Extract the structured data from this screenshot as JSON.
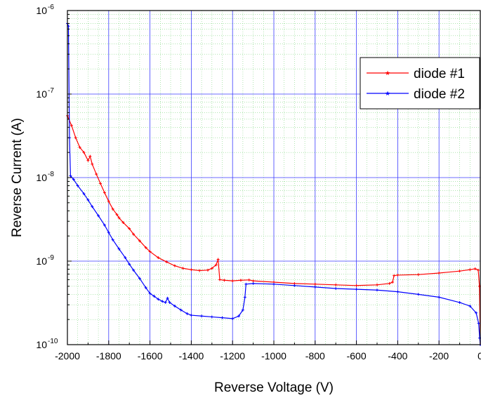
{
  "chart_data": {
    "type": "line",
    "title": "",
    "xlabel": "Reverse Voltage (V)",
    "ylabel": "Reverse Current (A)",
    "x_scale": "linear",
    "y_scale": "log",
    "xlim": [
      -2000,
      0
    ],
    "ylim": [
      1e-10,
      1e-06
    ],
    "x_ticks": [
      -2000,
      -1800,
      -1600,
      -1400,
      -1200,
      -1000,
      -800,
      -600,
      -400,
      -200,
      0
    ],
    "x_tick_labels": [
      "-2000",
      "-1800",
      "-1600",
      "-1400",
      "-1200",
      "-1000",
      "-800",
      "-600",
      "-400",
      "-200",
      "0"
    ],
    "y_ticks": [
      1e-10,
      1e-09,
      1e-08,
      1e-07,
      1e-06
    ],
    "y_tick_mantissa": [
      "10",
      "10",
      "10",
      "10",
      "10"
    ],
    "y_tick_exponents": [
      "-10",
      "-9",
      "-8",
      "-7",
      "-6"
    ],
    "grid": {
      "major": true,
      "minor": true
    },
    "legend_position": "top-right",
    "series": [
      {
        "name": "diode #1",
        "color": "#ff0000",
        "marker": "star",
        "points": [
          [
            -2000,
            5.5e-08
          ],
          [
            -1980,
            4.2e-08
          ],
          [
            -1960,
            3e-08
          ],
          [
            -1940,
            2.3e-08
          ],
          [
            -1920,
            2e-08
          ],
          [
            -1900,
            1.6e-08
          ],
          [
            -1890,
            1.8e-08
          ],
          [
            -1880,
            1.45e-08
          ],
          [
            -1860,
            1.1e-08
          ],
          [
            -1840,
            8.5e-09
          ],
          [
            -1820,
            6.6e-09
          ],
          [
            -1800,
            5.2e-09
          ],
          [
            -1780,
            4.2e-09
          ],
          [
            -1760,
            3.6e-09
          ],
          [
            -1750,
            3.3e-09
          ],
          [
            -1730,
            2.9e-09
          ],
          [
            -1700,
            2.45e-09
          ],
          [
            -1680,
            2.1e-09
          ],
          [
            -1650,
            1.75e-09
          ],
          [
            -1620,
            1.45e-09
          ],
          [
            -1600,
            1.3e-09
          ],
          [
            -1560,
            1.1e-09
          ],
          [
            -1520,
            9.8e-10
          ],
          [
            -1480,
            8.8e-10
          ],
          [
            -1440,
            8.2e-10
          ],
          [
            -1400,
            7.9e-10
          ],
          [
            -1360,
            7.7e-10
          ],
          [
            -1320,
            7.8e-10
          ],
          [
            -1300,
            8.2e-10
          ],
          [
            -1280,
            9e-10
          ],
          [
            -1270,
            1.05e-09
          ],
          [
            -1262,
            6e-10
          ],
          [
            -1240,
            5.9e-10
          ],
          [
            -1200,
            5.8e-10
          ],
          [
            -1160,
            5.9e-10
          ],
          [
            -1120,
            5.95e-10
          ],
          [
            -1100,
            5.8e-10
          ],
          [
            -1000,
            5.6e-10
          ],
          [
            -900,
            5.4e-10
          ],
          [
            -800,
            5.3e-10
          ],
          [
            -700,
            5.2e-10
          ],
          [
            -600,
            5.1e-10
          ],
          [
            -500,
            5.2e-10
          ],
          [
            -440,
            5.4e-10
          ],
          [
            -425,
            5.6e-10
          ],
          [
            -418,
            6.7e-10
          ],
          [
            -400,
            6.8e-10
          ],
          [
            -300,
            6.9e-10
          ],
          [
            -200,
            7.2e-10
          ],
          [
            -100,
            7.6e-10
          ],
          [
            -50,
            7.9e-10
          ],
          [
            -25,
            8.1e-10
          ],
          [
            -10,
            7.8e-10
          ],
          [
            -4,
            5e-10
          ],
          [
            0,
            1e-10
          ]
        ]
      },
      {
        "name": "diode #2",
        "color": "#0000ff",
        "marker": "star",
        "points": [
          [
            -2000,
            7e-07
          ],
          [
            -1995,
            6.5e-07
          ],
          [
            -1990,
            3e-08
          ],
          [
            -1985,
            1.05e-08
          ],
          [
            -1970,
            9.5e-09
          ],
          [
            -1950,
            8e-09
          ],
          [
            -1920,
            6.4e-09
          ],
          [
            -1900,
            5.4e-09
          ],
          [
            -1880,
            4.5e-09
          ],
          [
            -1850,
            3.5e-09
          ],
          [
            -1820,
            2.7e-09
          ],
          [
            -1800,
            2.2e-09
          ],
          [
            -1780,
            1.8e-09
          ],
          [
            -1750,
            1.4e-09
          ],
          [
            -1720,
            1.1e-09
          ],
          [
            -1700,
            9.2e-10
          ],
          [
            -1680,
            7.8e-10
          ],
          [
            -1650,
            6.2e-10
          ],
          [
            -1620,
            4.8e-10
          ],
          [
            -1600,
            4.1e-10
          ],
          [
            -1580,
            3.8e-10
          ],
          [
            -1560,
            3.5e-10
          ],
          [
            -1540,
            3.3e-10
          ],
          [
            -1525,
            3.2e-10
          ],
          [
            -1515,
            3.6e-10
          ],
          [
            -1505,
            3.2e-10
          ],
          [
            -1480,
            2.9e-10
          ],
          [
            -1450,
            2.6e-10
          ],
          [
            -1420,
            2.35e-10
          ],
          [
            -1400,
            2.25e-10
          ],
          [
            -1350,
            2.2e-10
          ],
          [
            -1300,
            2.15e-10
          ],
          [
            -1250,
            2.1e-10
          ],
          [
            -1200,
            2.05e-10
          ],
          [
            -1170,
            2.2e-10
          ],
          [
            -1150,
            2.6e-10
          ],
          [
            -1140,
            3.7e-10
          ],
          [
            -1135,
            5.3e-10
          ],
          [
            -1100,
            5.4e-10
          ],
          [
            -1000,
            5.3e-10
          ],
          [
            -900,
            5.1e-10
          ],
          [
            -800,
            4.9e-10
          ],
          [
            -700,
            4.7e-10
          ],
          [
            -600,
            4.6e-10
          ],
          [
            -500,
            4.5e-10
          ],
          [
            -400,
            4.3e-10
          ],
          [
            -300,
            4e-10
          ],
          [
            -200,
            3.7e-10
          ],
          [
            -100,
            3.2e-10
          ],
          [
            -50,
            2.9e-10
          ],
          [
            -20,
            2.4e-10
          ],
          [
            -8,
            1.8e-10
          ],
          [
            -3,
            1.2e-10
          ],
          [
            0,
            1e-10
          ]
        ]
      }
    ]
  }
}
